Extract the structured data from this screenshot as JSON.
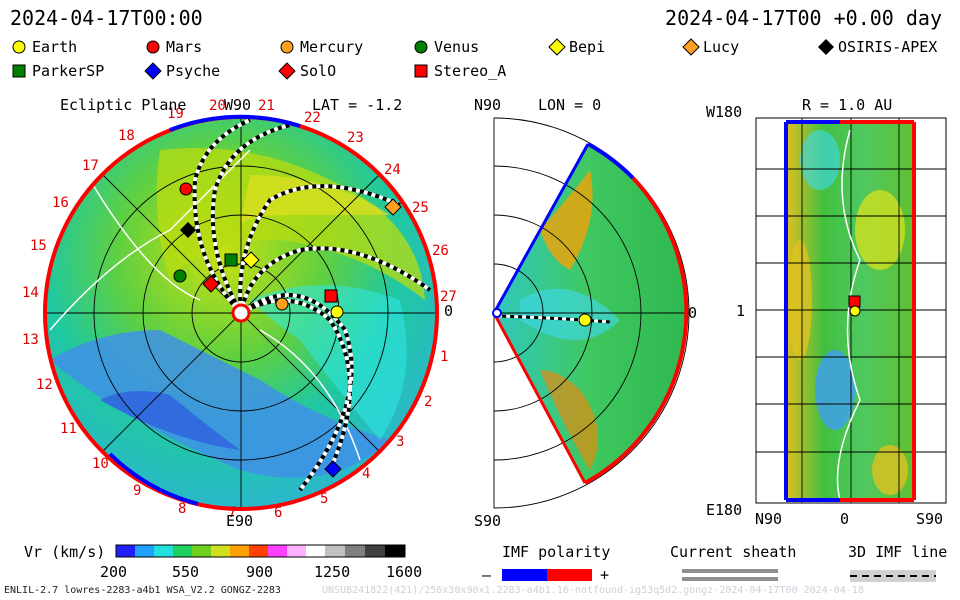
{
  "header": {
    "left_time": "2024-04-17T00:00",
    "right_time": "2024-04-17T00 +0.00 day"
  },
  "legend": [
    {
      "name": "Earth",
      "shape": "circle",
      "color": "#ffff00"
    },
    {
      "name": "Mars",
      "shape": "circle",
      "color": "#ff0000"
    },
    {
      "name": "Mercury",
      "shape": "circle",
      "color": "#ffa020"
    },
    {
      "name": "Venus",
      "shape": "circle",
      "color": "#008000"
    },
    {
      "name": "Bepi",
      "shape": "diamond",
      "color": "#ffff00"
    },
    {
      "name": "Lucy",
      "shape": "diamond",
      "color": "#ffa020"
    },
    {
      "name": "OSIRIS-APEX",
      "shape": "diamond",
      "color": "#000000"
    },
    {
      "name": "ParkerSP",
      "shape": "square",
      "color": "#008000"
    },
    {
      "name": "Psyche",
      "shape": "diamond",
      "color": "#0000ff"
    },
    {
      "name": "SolO",
      "shape": "diamond",
      "color": "#ff0000"
    },
    {
      "name": "Stereo_A",
      "shape": "square",
      "color": "#ff0000"
    }
  ],
  "panels": {
    "ecliptic": {
      "title": "Ecliptic Plane",
      "top_label": "W90",
      "lat_label": "LAT = -1.2",
      "bottom_label": "E90",
      "right_label": "0",
      "carrington_labels": [
        "19",
        "20",
        "21",
        "22",
        "23",
        "24",
        "25",
        "26",
        "27",
        "1",
        "2",
        "3",
        "4",
        "5",
        "6",
        "7",
        "8",
        "9",
        "10",
        "11",
        "12",
        "13",
        "14",
        "15",
        "16",
        "17",
        "18"
      ]
    },
    "meridional": {
      "top_label": "N90",
      "lon_label": "LON = 0",
      "bottom_label": "S90",
      "right_label": "0"
    },
    "map": {
      "r_label": "R = 1.0 AU",
      "y_top": "W180",
      "y_mid": "1",
      "y_bottom": "E180",
      "x_left": "N90",
      "x_mid": "0",
      "x_right": "S90"
    }
  },
  "colorbar": {
    "label": "Vr (km/s)",
    "ticks": [
      "200",
      "550",
      "900",
      "1250",
      "1600"
    ],
    "colors": [
      "#2020ff",
      "#20a0ff",
      "#20e0e0",
      "#20d060",
      "#70d020",
      "#d0e020",
      "#ffa000",
      "#ff4000",
      "#ff40ff",
      "#ffb0ff",
      "#ffffff",
      "#c0c0c0",
      "#808080",
      "#404040",
      "#000000"
    ]
  },
  "keys": {
    "imf_polarity": "IMF polarity",
    "minus": "–",
    "plus": "+",
    "current_sheath": "Current sheath",
    "imf_line": "3D IMF line"
  },
  "footer": {
    "left": "ENLIL-2.7 lowres-2283-a4b1 WSA_V2.2 GONGZ-2283",
    "right": "UNSUB241822(421)/256x30x90x1.2283-a4b1.16-notfound-ig53q5d2.gongz-2024-04-17T00  2024-04-18"
  },
  "chart_data": [
    {
      "type": "heatmap",
      "title": "Ecliptic Plane",
      "quantity": "Vr (km/s)",
      "range": [
        200,
        1600
      ],
      "lat_deg": -1.2,
      "bodies": [
        "Earth",
        "Mars",
        "Mercury",
        "Venus",
        "Bepi",
        "Lucy",
        "OSIRIS-APEX",
        "ParkerSP",
        "Psyche",
        "SolO",
        "Stereo_A"
      ]
    },
    {
      "type": "heatmap",
      "title": "LON = 0",
      "quantity": "Vr (km/s)",
      "range": [
        200,
        1600
      ]
    },
    {
      "type": "heatmap",
      "title": "R = 1.0 AU",
      "quantity": "Vr (km/s)",
      "range": [
        200,
        1600
      ]
    }
  ]
}
